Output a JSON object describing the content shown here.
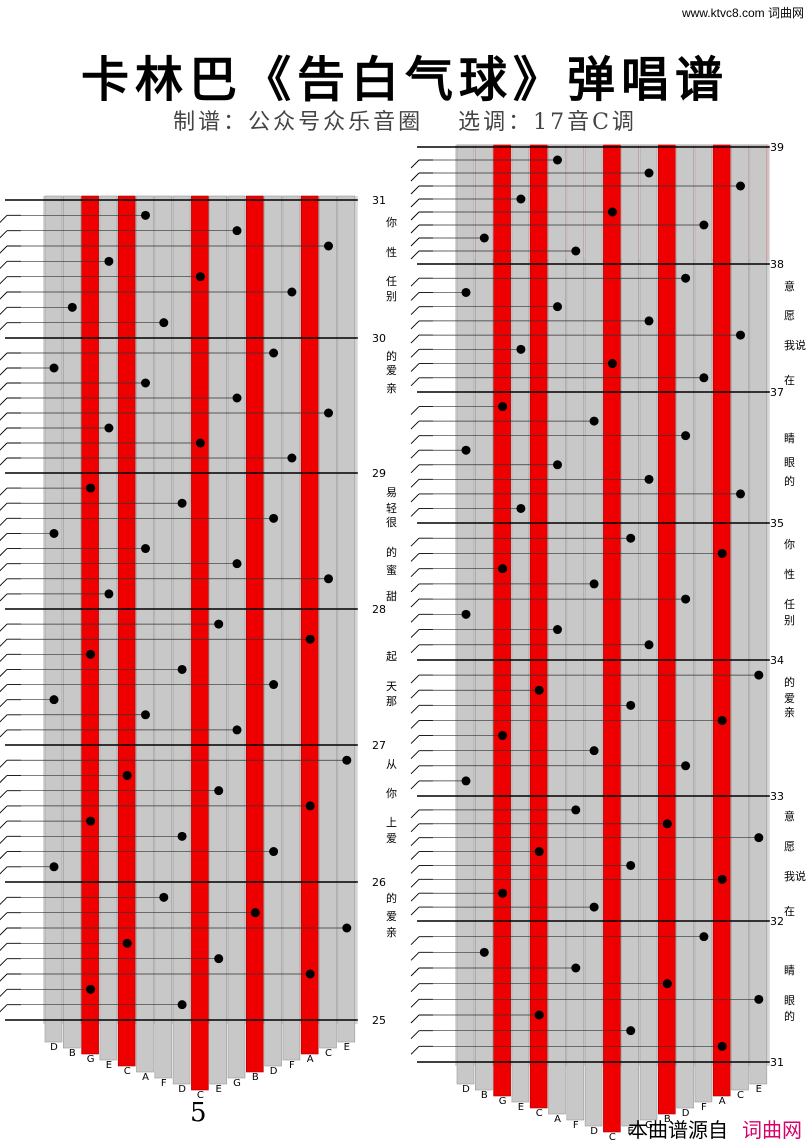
{
  "watermark": "www.ktvc8.com 词曲网",
  "title": "卡林巴《告白气球》弹唱谱",
  "subtitle": "制谱：公众号众乐音圈　 选调：17音C调",
  "page_number": "5",
  "credit": {
    "prefix": "本曲谱源自",
    "brand": "词曲网"
  },
  "tine_labels": [
    "D",
    "B",
    "G",
    "E",
    "C",
    "A",
    "F",
    "D",
    "C",
    "E",
    "G",
    "B",
    "D",
    "F",
    "A",
    "C",
    "E"
  ],
  "left_panel": {
    "measures": [
      "31",
      "30",
      "29",
      "28",
      "27",
      "26",
      "25"
    ],
    "lyrics": [
      {
        "text": "你"
      },
      {
        "text": "性"
      },
      {
        "text": "任"
      },
      {
        "text": "别"
      },
      {
        "text": "的"
      },
      {
        "text": "爱"
      },
      {
        "text": "亲"
      },
      {
        "text": "易"
      },
      {
        "text": "轻"
      },
      {
        "text": "很"
      },
      {
        "text": "的"
      },
      {
        "text": "蜜"
      },
      {
        "text": "甜"
      },
      {
        "text": "起"
      },
      {
        "text": "天"
      },
      {
        "text": "那"
      },
      {
        "text": "从"
      },
      {
        "text": "你"
      },
      {
        "text": "上"
      },
      {
        "text": "爱"
      },
      {
        "text": "的"
      },
      {
        "text": "爱"
      },
      {
        "text": "亲"
      }
    ]
  },
  "right_panel": {
    "measures": [
      "39",
      "38",
      "37",
      "35",
      "34",
      "33",
      "32",
      "31"
    ],
    "lyrics": [
      {
        "text": "意"
      },
      {
        "text": "愿"
      },
      {
        "text": "我说"
      },
      {
        "text": "在"
      },
      {
        "text": "睛"
      },
      {
        "text": "眼"
      },
      {
        "text": "的"
      },
      {
        "text": "你"
      },
      {
        "text": "性"
      },
      {
        "text": "任"
      },
      {
        "text": "别"
      },
      {
        "text": "的"
      },
      {
        "text": "爱"
      },
      {
        "text": "亲"
      },
      {
        "text": "意"
      },
      {
        "text": "愿"
      },
      {
        "text": "我说"
      },
      {
        "text": "在"
      },
      {
        "text": "睛"
      },
      {
        "text": "眼"
      },
      {
        "text": "的"
      }
    ]
  },
  "colors": {
    "red_tine": "#ee0000",
    "grey_tine": "#c8c8c8",
    "highlight": "#ffd6d6",
    "note": "#000000"
  }
}
